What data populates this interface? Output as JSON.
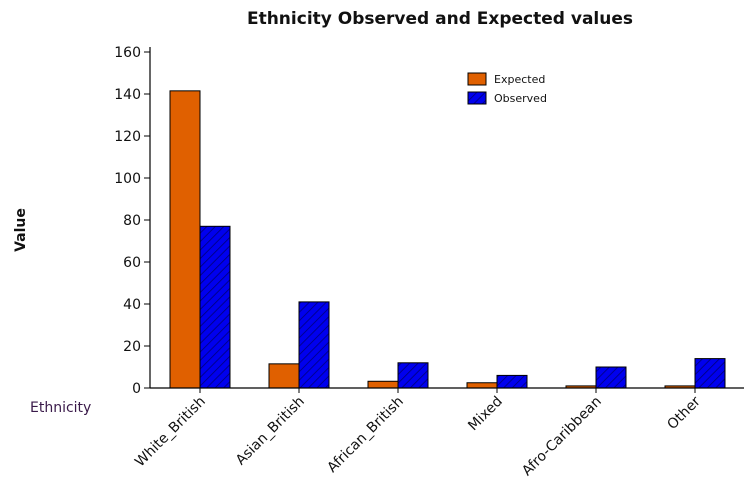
{
  "chart_data": {
    "type": "bar",
    "title": "Ethnicity Observed and Expected values",
    "ylabel": "Value",
    "xlabel": "Ethnicity",
    "categories": [
      "White_British",
      "Asian_British",
      "African_British",
      "Mixed",
      "Afro-Caribbean",
      "Other"
    ],
    "series": [
      {
        "name": "Expected",
        "values": [
          141.5,
          11.5,
          3.2,
          2.5,
          1.0,
          1.0
        ],
        "color": "#e06000",
        "pattern": "solid"
      },
      {
        "name": "Observed",
        "values": [
          77,
          41,
          12,
          6,
          10,
          14
        ],
        "color": "#0000ee",
        "pattern": "hatched"
      }
    ],
    "ylim": [
      0,
      160
    ],
    "yticks": [
      "0",
      "20",
      "40",
      "60",
      "80",
      "100",
      "120",
      "140",
      "160"
    ],
    "grid": false,
    "legend_position": "top-right"
  }
}
